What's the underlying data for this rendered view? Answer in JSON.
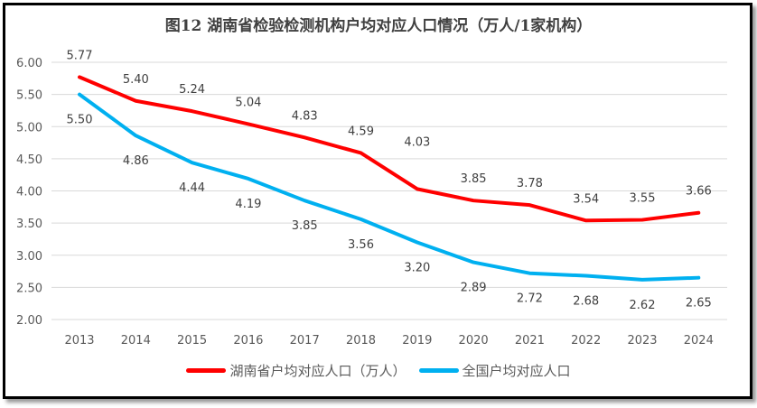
{
  "chart_data": {
    "type": "line",
    "title": "图12 湖南省检验检测机构户均对应人口情况（万人/1家机构）",
    "categories": [
      "2013",
      "2014",
      "2015",
      "2016",
      "2017",
      "2018",
      "2019",
      "2020",
      "2021",
      "2022",
      "2023",
      "2024"
    ],
    "series": [
      {
        "name": "湖南省户均对应人口（万人）",
        "color": "#FF0000",
        "values": [
          5.77,
          5.4,
          5.24,
          5.04,
          4.83,
          4.59,
          4.03,
          3.85,
          3.78,
          3.54,
          3.55,
          3.66
        ],
        "labels": [
          "5.77",
          "5.40",
          "5.24",
          "5.04",
          "4.83",
          "4.59",
          "4.03",
          "3.85",
          "3.78",
          "3.54",
          "3.55",
          "3.66"
        ]
      },
      {
        "name": "全国户均对应人口",
        "color": "#00B0F0",
        "values": [
          5.5,
          4.86,
          4.44,
          4.19,
          3.85,
          3.56,
          3.2,
          2.89,
          2.72,
          2.68,
          2.62,
          2.65
        ],
        "labels": [
          "5.50",
          "4.86",
          "4.44",
          "4.19",
          "3.85",
          "3.56",
          "3.20",
          "2.89",
          "2.72",
          "2.68",
          "2.62",
          "2.65"
        ]
      }
    ],
    "yticks": [
      "2.00",
      "2.50",
      "3.00",
      "3.50",
      "4.00",
      "4.50",
      "5.00",
      "5.50",
      "6.00"
    ],
    "ylim": [
      2,
      6
    ],
    "grid": true,
    "legend": "bottom"
  }
}
